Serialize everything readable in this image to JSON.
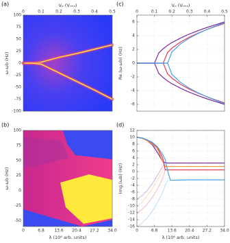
{
  "chart_data": [
    {
      "type": "heatmap",
      "panel_label": "(a)",
      "xlabel": "Vₚ (Vᵣₘₛ)",
      "ylabel": "ω-ωb (Hz)",
      "xaxis": "top",
      "xlim": [
        0,
        0.5
      ],
      "xticks": [
        0,
        0.1,
        0.2,
        0.3,
        0.4,
        0.5
      ],
      "ylim": [
        -100,
        100
      ],
      "yticks": [
        100,
        75,
        50,
        25,
        0,
        -25,
        -50,
        -75,
        -100
      ],
      "x": [
        0,
        0.05,
        0.1,
        0.2,
        0.3,
        0.4,
        0.5
      ],
      "series": [
        {
          "color": "#ffe040",
          "values": [
            0,
            0,
            2,
            12,
            20,
            29,
            38
          ]
        },
        {
          "color": "#ffe040",
          "values": [
            0,
            0,
            -2,
            -20,
            -38,
            -56,
            -75
          ]
        }
      ]
    },
    {
      "type": "heatmap",
      "panel_label": "(b)",
      "xlabel": "λ (10⁶ arb. units)",
      "ylabel": "ω-ωb (Hz)",
      "xaxis": "bottom",
      "xlim": [
        0,
        34
      ],
      "xticks": [
        0,
        6.8,
        13.6,
        20.4,
        27.2,
        {
          "value": 34,
          "label": "34.0"
        }
      ],
      "ylim": [
        -60,
        100
      ],
      "yticks": [
        100,
        75,
        50,
        25,
        0,
        -25,
        -50
      ]
    },
    {
      "type": "line",
      "panel_label": "(c)",
      "xlabel": "Vₚ (Vᵣₘₛ)",
      "ylabel": "Re.(ω-ωb) (Hz)",
      "xaxis": "top",
      "grid": true,
      "xlim": [
        0,
        0.5
      ],
      "xticks": [
        0,
        0.1,
        0.2,
        0.3,
        0.4,
        0.5
      ],
      "ylim": [
        -7,
        7
      ],
      "yticks": [
        6,
        4,
        2,
        0,
        -2,
        -4,
        -6
      ],
      "x": [
        0,
        0.1,
        0.125,
        0.15,
        0.175,
        0.2,
        0.25,
        0.3,
        0.35,
        0.4,
        0.45,
        0.5
      ],
      "series": [
        {
          "color": "#7a2aa8",
          "values": [
            0,
            0,
            1.5,
            2.1,
            2.6,
            3.0,
            3.67,
            4.24,
            4.74,
            5.2,
            5.61,
            6
          ]
        },
        {
          "color": "#7a2aa8",
          "values": [
            0,
            0,
            -1.5,
            -2.1,
            -2.6,
            -3.0,
            -3.67,
            -4.24,
            -4.74,
            -5.2,
            -5.61,
            -6
          ]
        },
        {
          "color": "#e03a5a",
          "values": [
            0,
            0,
            0,
            0,
            1.55,
            2.19,
            3.1,
            3.8,
            4.38,
            4.9,
            5.37,
            5.8
          ]
        },
        {
          "color": "#e03a5a",
          "values": [
            0,
            0,
            0,
            0,
            -1.55,
            -2.19,
            -3.1,
            -3.8,
            -4.38,
            -4.9,
            -5.37,
            -5.8
          ]
        },
        {
          "color": "#4aa0e8",
          "values": [
            0,
            0,
            0,
            0,
            0,
            1.64,
            2.83,
            3.66,
            4.33,
            4.91,
            5.43,
            5.9
          ]
        },
        {
          "color": "#4aa0e8",
          "values": [
            0,
            0,
            0,
            0,
            0,
            -1.64,
            -2.83,
            -3.66,
            -4.33,
            -4.91,
            -5.43,
            -5.9
          ]
        }
      ]
    },
    {
      "type": "line",
      "panel_label": "(d)",
      "xlabel": "λ (10⁶ arb. units)",
      "ylabel": "Img.(ωb) (Hz)",
      "xaxis": "bottom",
      "grid": true,
      "xlim": [
        0,
        34
      ],
      "xticks": [
        0,
        6.8,
        13.6,
        20.4,
        27.2,
        {
          "value": 34,
          "label": "34.0"
        }
      ],
      "ylim": [
        -16,
        12
      ],
      "yticks": [
        12,
        10,
        8,
        6,
        4,
        2,
        0,
        -2,
        -4,
        -6,
        -8,
        -10,
        -12,
        -14,
        -16
      ],
      "x": [
        0,
        2,
        4,
        6,
        8,
        10,
        11,
        12,
        13,
        14,
        20.4,
        27.2,
        34
      ],
      "series": [
        {
          "color": "#7a2aa8",
          "opacity": 0.3,
          "values": [
            -8,
            -7,
            -5.5,
            -3.5,
            -1,
            1.5,
            2.5,
            null,
            null,
            null,
            null,
            null,
            null
          ]
        },
        {
          "color": "#f0a040",
          "opacity": 0.3,
          "values": [
            -10,
            -9,
            -7,
            -5,
            -2.5,
            0.5,
            1.5,
            null,
            null,
            null,
            null,
            null,
            null
          ]
        },
        {
          "color": "#e03a5a",
          "opacity": 0.3,
          "values": [
            -12,
            -11,
            -9.5,
            -7.5,
            -5,
            -2,
            0.5,
            null,
            null,
            null,
            null,
            null,
            null
          ]
        },
        {
          "color": "#4aa0e8",
          "opacity": 0.3,
          "values": [
            -16,
            -15,
            -13.5,
            -11.5,
            -9,
            -6,
            -4,
            -2.5,
            null,
            null,
            null,
            null,
            null
          ]
        },
        {
          "color": "#7a2aa8",
          "opacity": 1,
          "values": [
            10,
            9.7,
            9,
            7.8,
            5.5,
            3,
            2.6,
            2.5,
            2.5,
            2.5,
            2.5,
            2.5,
            2.5
          ]
        },
        {
          "color": "#f0a040",
          "opacity": 1,
          "values": [
            10,
            9.7,
            9,
            8,
            6.5,
            3,
            1.5,
            1.5,
            1.5,
            1.5,
            1.5,
            1.5,
            1.5
          ]
        },
        {
          "color": "#e03a5a",
          "opacity": 1,
          "values": [
            10,
            9.8,
            9.2,
            8.3,
            7,
            4,
            0.5,
            0.5,
            0.5,
            0.5,
            0.5,
            0.5,
            0.5
          ]
        },
        {
          "color": "#4aa0e8",
          "opacity": 1,
          "values": [
            10,
            9.8,
            9.3,
            8.5,
            7.2,
            5,
            3.5,
            0,
            -2.5,
            -2.5,
            -2.4,
            -2.4,
            -2.4
          ]
        }
      ]
    }
  ]
}
